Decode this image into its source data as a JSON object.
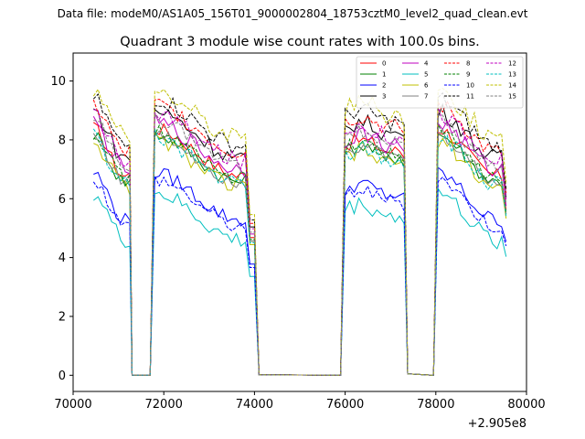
{
  "header": {
    "data_file": "Data file: modeM0/AS1A05_156T01_9000002804_18753cztM0_level2_quad_clean.evt"
  },
  "chart_data": {
    "type": "line",
    "title": "Quadrant 3 module wise count rates with 100.0s bins.",
    "xlabel": "",
    "ylabel": "",
    "x_offset_label": "+2.905e8",
    "xlim": [
      70000,
      80000
    ],
    "ylim": [
      -0.55,
      10.95
    ],
    "x_ticks": [
      70000,
      72000,
      74000,
      76000,
      78000,
      80000
    ],
    "y_ticks": [
      0,
      2,
      4,
      6,
      8,
      10
    ],
    "x_tick_labels": [
      "70000",
      "72000",
      "74000",
      "76000",
      "78000",
      "80000"
    ],
    "y_tick_labels": [
      "0",
      "2",
      "4",
      "6",
      "8",
      "10"
    ],
    "legend_position": "top-right",
    "active_windows": [
      [
        70450,
        71200
      ],
      [
        71800,
        74000
      ],
      [
        76000,
        77280
      ],
      [
        78050,
        79550
      ]
    ],
    "series": [
      {
        "name": "0",
        "color": "#ff0000",
        "dashed": false,
        "base": 7.8,
        "amp": 0.25
      },
      {
        "name": "1",
        "color": "#008000",
        "dashed": false,
        "base": 7.6,
        "amp": 0.25
      },
      {
        "name": "2",
        "color": "#0000ff",
        "dashed": false,
        "base": 6.3,
        "amp": 0.25
      },
      {
        "name": "3",
        "color": "#000000",
        "dashed": false,
        "base": 8.4,
        "amp": 0.3
      },
      {
        "name": "4",
        "color": "#bf00bf",
        "dashed": false,
        "base": 8.0,
        "amp": 0.3
      },
      {
        "name": "5",
        "color": "#00bfbf",
        "dashed": false,
        "base": 5.6,
        "amp": 0.3
      },
      {
        "name": "6",
        "color": "#bfbf00",
        "dashed": false,
        "base": 7.4,
        "amp": 0.3
      },
      {
        "name": "7",
        "color": "#808080",
        "dashed": false,
        "base": 7.6,
        "amp": 0.25
      },
      {
        "name": "8",
        "color": "#ff0000",
        "dashed": true,
        "base": 8.6,
        "amp": 0.3
      },
      {
        "name": "9",
        "color": "#008000",
        "dashed": true,
        "base": 7.7,
        "amp": 0.25
      },
      {
        "name": "10",
        "color": "#0000ff",
        "dashed": true,
        "base": 6.1,
        "amp": 0.25
      },
      {
        "name": "11",
        "color": "#000000",
        "dashed": true,
        "base": 8.8,
        "amp": 0.3
      },
      {
        "name": "12",
        "color": "#bf00bf",
        "dashed": true,
        "base": 8.3,
        "amp": 0.3
      },
      {
        "name": "13",
        "color": "#00bfbf",
        "dashed": true,
        "base": 7.5,
        "amp": 0.3
      },
      {
        "name": "14",
        "color": "#bfbf00",
        "dashed": true,
        "base": 9.1,
        "amp": 0.35
      },
      {
        "name": "15",
        "color": "#808080",
        "dashed": true,
        "base": 8.1,
        "amp": 0.25
      }
    ]
  }
}
